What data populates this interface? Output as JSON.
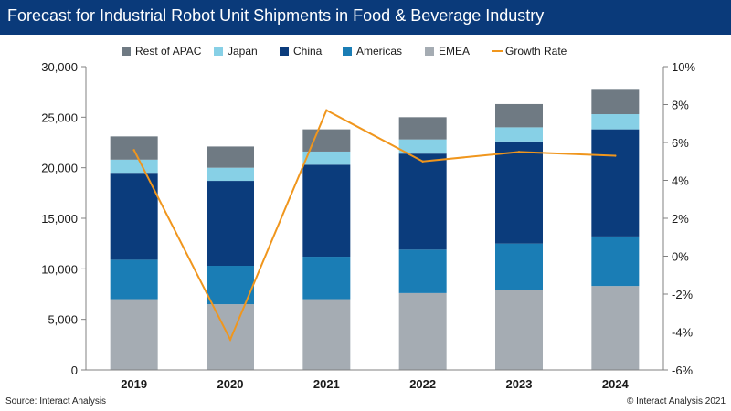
{
  "header": {
    "title": "Forecast for Industrial Robot Unit Shipments in Food & Beverage Industry"
  },
  "footer": {
    "source": "Source: Interact Analysis",
    "copyright": "© Interact Analysis 2021"
  },
  "chart_data": {
    "type": "bar",
    "stacked": true,
    "title": "Forecast for Industrial Robot Unit Shipments in Food & Beverage Industry",
    "categories": [
      "2019",
      "2020",
      "2021",
      "2022",
      "2023",
      "2024"
    ],
    "series": [
      {
        "name": "EMEA",
        "color": "#a5acb3",
        "values": [
          7000,
          6500,
          7000,
          7600,
          7900,
          8300
        ]
      },
      {
        "name": "Americas",
        "color": "#1a7db5",
        "values": [
          3900,
          3800,
          4200,
          4300,
          4600,
          4900
        ]
      },
      {
        "name": "China",
        "color": "#0b3c7c",
        "values": [
          8600,
          8400,
          9100,
          9500,
          10100,
          10600
        ]
      },
      {
        "name": "Japan",
        "color": "#87d0e6",
        "values": [
          1300,
          1300,
          1300,
          1400,
          1400,
          1500
        ]
      },
      {
        "name": "Rest of APAC",
        "color": "#6f7a83",
        "values": [
          2300,
          2100,
          2200,
          2200,
          2300,
          2500
        ]
      }
    ],
    "line_series": {
      "name": "Growth Rate",
      "color": "#f0961d",
      "axis": "right",
      "values": [
        5.6,
        -4.4,
        7.7,
        5.0,
        5.5,
        5.3
      ]
    },
    "legend_order": [
      "Rest of APAC",
      "Japan",
      "China",
      "Americas",
      "EMEA",
      "Growth Rate"
    ],
    "legend_position": "top",
    "y_left": {
      "min": 0,
      "max": 30000,
      "step": 5000,
      "ticks": [
        "0",
        "5,000",
        "10,000",
        "15,000",
        "20,000",
        "25,000",
        "30,000"
      ]
    },
    "y_right": {
      "min": -6,
      "max": 10,
      "step": 2,
      "ticks": [
        "-6%",
        "-4%",
        "-2%",
        "0%",
        "2%",
        "4%",
        "6%",
        "8%",
        "10%"
      ]
    },
    "grid": false
  }
}
